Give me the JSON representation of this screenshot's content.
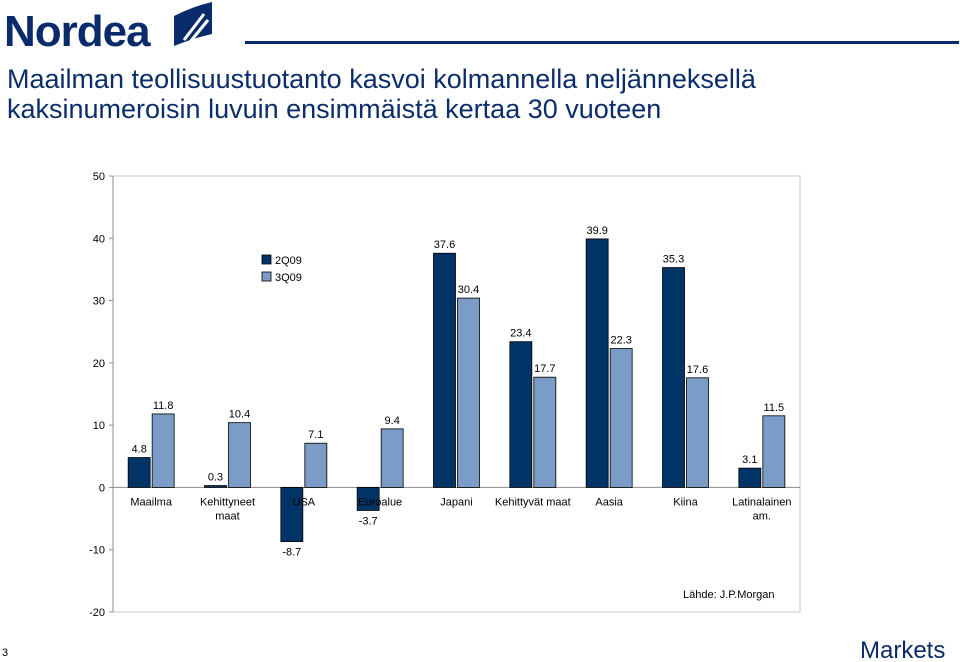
{
  "header": {
    "brand": "Nordea",
    "title_lines": [
      "Maailman teollisuustuotanto kasvoi kolmannella neljänneksellä",
      "kaksinumeroisin luvuin ensimmäistä kertaa 30 vuoteen"
    ]
  },
  "colors": {
    "brand_navy": "#0c2d6b",
    "series_2q09": "#003366",
    "series_3q09": "#7a9cc6"
  },
  "chart_data": {
    "type": "bar",
    "categories": [
      "Maailma",
      "Kehittyneet maat",
      "USA",
      "Euroalue",
      "Japani",
      "Kehittyvät maat",
      "Aasia",
      "Kiina",
      "Latinalainen am."
    ],
    "category_labels": [
      [
        "Maailma"
      ],
      [
        "Kehittyneet",
        "maat"
      ],
      [
        "USA"
      ],
      [
        "Euroalue"
      ],
      [
        "Japani"
      ],
      [
        "Kehittyvät maat"
      ],
      [
        "Aasia"
      ],
      [
        "Kiina"
      ],
      [
        "Latinalainen",
        "am."
      ]
    ],
    "series": [
      {
        "name": "2Q09",
        "values": [
          4.8,
          0.3,
          -8.7,
          -3.7,
          37.6,
          23.4,
          39.9,
          35.3,
          3.1
        ]
      },
      {
        "name": "3Q09",
        "values": [
          11.8,
          10.4,
          7.1,
          9.4,
          30.4,
          17.7,
          22.3,
          17.6,
          11.5
        ]
      }
    ],
    "data_labels": [
      [
        "4.8",
        "0.3",
        "-8.7",
        "-3.7",
        "37.6",
        "23.4",
        "39.9",
        "35.3",
        "3.1"
      ],
      [
        "11.8",
        "10.4",
        "7.1",
        "9.4",
        "30.4",
        "17.7",
        "22.3",
        "17.6",
        "11.5"
      ]
    ],
    "y_ticks": [
      -20,
      -10,
      0,
      10,
      20,
      30,
      40,
      50
    ],
    "ylim": [
      -20,
      50
    ],
    "grid": false,
    "legend_position": "top-left inside plot"
  },
  "footer": {
    "source": "Lähde: J.P.Morgan",
    "page_number": "3",
    "markets_brand": "Markets"
  }
}
